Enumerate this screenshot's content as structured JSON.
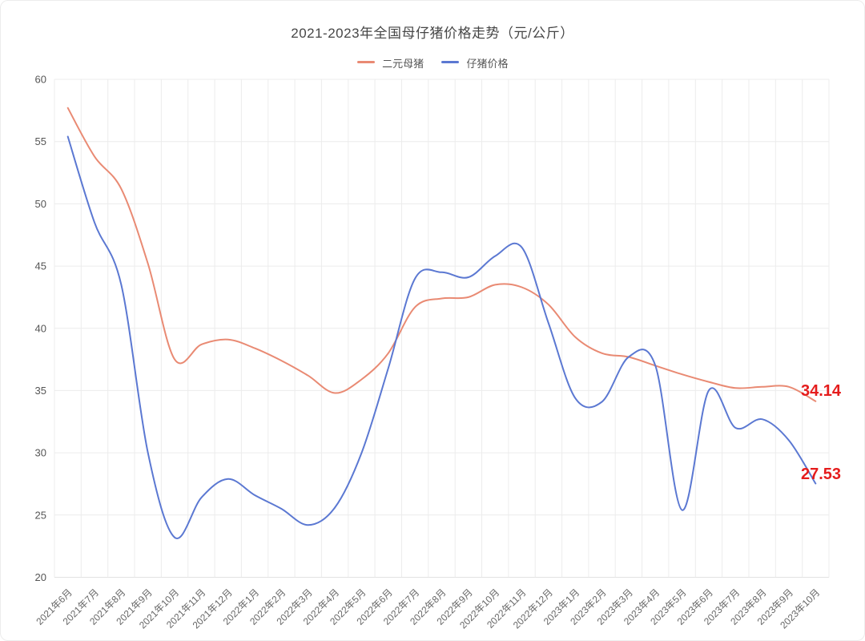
{
  "header": {
    "title": "2021-2023年全国母仔猪价格走势（元/公斤）"
  },
  "chart_data": {
    "type": "line",
    "title": "2021-2023年全国母仔猪价格走势（元/公斤）",
    "xlabel": "",
    "ylabel": "",
    "ylim": [
      20,
      60
    ],
    "y_ticks": [
      20,
      25,
      30,
      35,
      40,
      45,
      50,
      55,
      60
    ],
    "grid": true,
    "smooth": true,
    "legend_position": "top",
    "end_label_color": "#e51c1c",
    "grid_color": "#ececec",
    "categories": [
      "2021年6月",
      "2021年7月",
      "2021年8月",
      "2021年9月",
      "2021年10月",
      "2021年11月",
      "2021年12月",
      "2022年1月",
      "2022年2月",
      "2022年3月",
      "2022年4月",
      "2022年5月",
      "2022年6月",
      "2022年7月",
      "2022年8月",
      "2022年9月",
      "2022年10月",
      "2022年11月",
      "2022年12月",
      "2023年1月",
      "2023年2月",
      "2023年3月",
      "2023年4月",
      "2023年5月",
      "2023年6月",
      "2023年7月",
      "2023年8月",
      "2023年9月",
      "2023年10月"
    ],
    "series": [
      {
        "name": "二元母猪",
        "color": "#e98a73",
        "end_label": "34.14",
        "values": [
          57.7,
          53.8,
          51.2,
          45.2,
          37.5,
          38.7,
          39.1,
          38.4,
          37.4,
          36.2,
          34.8,
          35.9,
          38.0,
          41.7,
          42.4,
          42.5,
          43.5,
          43.3,
          41.9,
          39.3,
          38.0,
          37.7,
          37.0,
          36.3,
          35.7,
          35.2,
          35.3,
          35.3,
          34.14
        ]
      },
      {
        "name": "仔猪价格",
        "color": "#5b78d2",
        "end_label": "27.53",
        "values": [
          55.4,
          48.5,
          43.5,
          30.0,
          23.2,
          26.4,
          27.9,
          26.6,
          25.5,
          24.2,
          25.6,
          30.0,
          36.8,
          44.0,
          44.5,
          44.1,
          45.8,
          46.5,
          40.4,
          34.4,
          34.1,
          37.7,
          37.0,
          25.4,
          35.0,
          32.0,
          32.7,
          31.0,
          27.53
        ]
      }
    ]
  }
}
